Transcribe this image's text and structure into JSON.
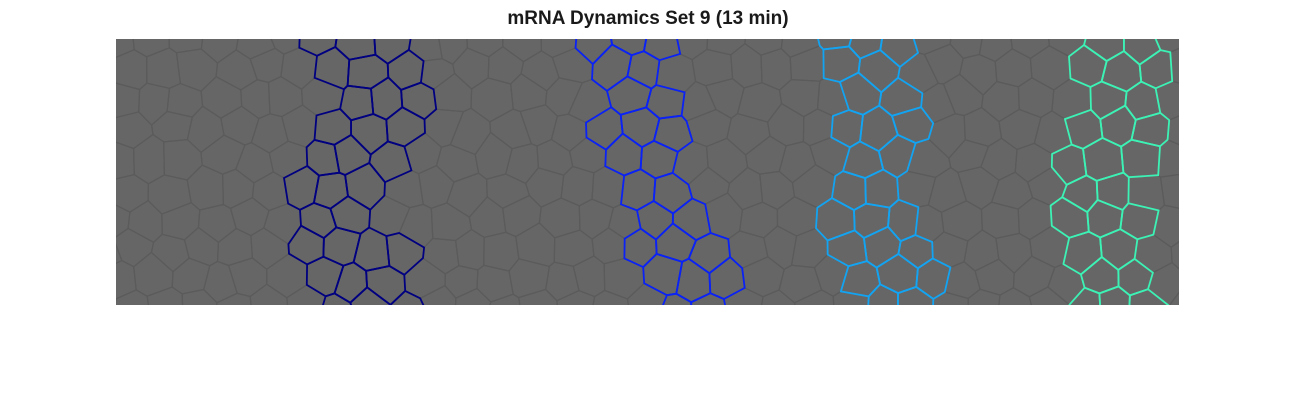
{
  "figure": {
    "title": "mRNA Dynamics Set 9 (13 min)"
  },
  "tissue": {
    "background_color": "#666666",
    "cell_edge_color": "#5b5b5b",
    "stripes": [
      {
        "name": "stripe-1",
        "color": "#000080"
      },
      {
        "name": "stripe-2",
        "color": "#0a22f5"
      },
      {
        "name": "stripe-3",
        "color": "#12a4f2"
      },
      {
        "name": "stripe-4",
        "color": "#3cf2b5"
      }
    ]
  }
}
